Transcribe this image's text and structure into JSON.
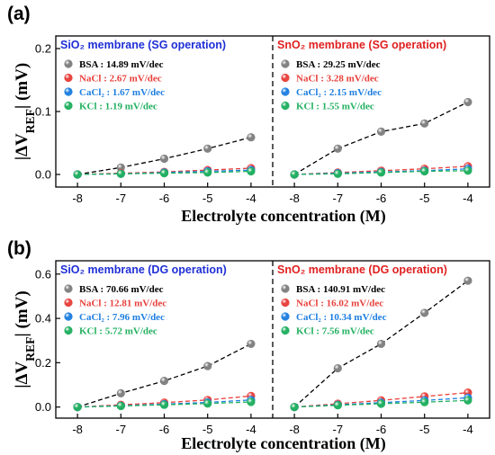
{
  "colors": {
    "BSA": "#808080",
    "NaCl": "#e8413c",
    "CaCl2": "#1e7fe0",
    "KCl": "#22b060",
    "sio2_title": "#1f2fd6",
    "sno2_title": "#e02020"
  },
  "chart_data": [
    {
      "panel_label": "(a)",
      "type": "scatter",
      "xlabel": "Electrolyte concentration (M)",
      "ylabel": "|ΔV_REF| (mV)",
      "ylim": [
        -0.02,
        0.22
      ],
      "yticks": [
        0.0,
        0.1,
        0.2
      ],
      "ytick_labels": [
        "0.0",
        "0.1",
        "0.2"
      ],
      "subplots": [
        {
          "title": "SiO₂ membrane (SG operation)",
          "title_color_key": "sio2_title",
          "xlim": [
            -8.5,
            -3.5
          ],
          "xticks": [
            -8,
            -7,
            -6,
            -5,
            -4
          ],
          "xtick_labels": [
            "-8",
            "-7",
            "-6",
            "-5",
            "-4"
          ],
          "series": [
            {
              "key": "BSA",
              "legend": "BSA : 14.89 mV/dec",
              "x": [
                -8,
                -7,
                -6,
                -5,
                -4
              ],
              "y": [
                0.0,
                0.011,
                0.025,
                0.041,
                0.059
              ]
            },
            {
              "key": "NaCl",
              "legend": "NaCl : 2.67 mV/dec",
              "x": [
                -8,
                -7,
                -6,
                -5,
                -4
              ],
              "y": [
                0.0,
                0.002,
                0.004,
                0.007,
                0.01
              ]
            },
            {
              "key": "CaCl2",
              "legend": "CaCl₂ : 1.67 mV/dec",
              "x": [
                -8,
                -7,
                -6,
                -5,
                -4
              ],
              "y": [
                0.0,
                0.001,
                0.003,
                0.005,
                0.007
              ]
            },
            {
              "key": "KCl",
              "legend": "KCl : 1.19 mV/dec",
              "x": [
                -8,
                -7,
                -6,
                -5,
                -4
              ],
              "y": [
                0.0,
                0.001,
                0.002,
                0.003,
                0.005
              ]
            }
          ]
        },
        {
          "title": "SnO₂ membrane (SG operation)",
          "title_color_key": "sno2_title",
          "xlim": [
            -8.5,
            -3.5
          ],
          "xticks": [
            -8,
            -7,
            -6,
            -5,
            -4
          ],
          "xtick_labels": [
            "-8",
            "-7",
            "-6",
            "-5",
            "-4"
          ],
          "series": [
            {
              "key": "BSA",
              "legend": "BSA : 29.25 mV/dec",
              "x": [
                -8,
                -7,
                -6,
                -5,
                -4
              ],
              "y": [
                0.0,
                0.041,
                0.068,
                0.081,
                0.115
              ]
            },
            {
              "key": "NaCl",
              "legend": "NaCl : 3.28 mV/dec",
              "x": [
                -8,
                -7,
                -6,
                -5,
                -4
              ],
              "y": [
                0.0,
                0.003,
                0.006,
                0.009,
                0.013
              ]
            },
            {
              "key": "CaCl2",
              "legend": "CaCl₂ : 2.15 mV/dec",
              "x": [
                -8,
                -7,
                -6,
                -5,
                -4
              ],
              "y": [
                0.0,
                0.002,
                0.004,
                0.006,
                0.009
              ]
            },
            {
              "key": "KCl",
              "legend": "KCl : 1.55 mV/dec",
              "x": [
                -8,
                -7,
                -6,
                -5,
                -4
              ],
              "y": [
                0.0,
                0.001,
                0.003,
                0.005,
                0.006
              ]
            }
          ]
        }
      ]
    },
    {
      "panel_label": "(b)",
      "type": "scatter",
      "xlabel": "Electrolyte concentration (M)",
      "ylabel": "|ΔV_REF| (mV)",
      "ylim": [
        -0.05,
        0.66
      ],
      "yticks": [
        0.0,
        0.2,
        0.4,
        0.6
      ],
      "ytick_labels": [
        "0.0",
        "0.2",
        "0.4",
        "0.6"
      ],
      "subplots": [
        {
          "title": "SiO₂ membrane (DG operation)",
          "title_color_key": "sio2_title",
          "xlim": [
            -8.5,
            -3.5
          ],
          "xticks": [
            -8,
            -7,
            -6,
            -5,
            -4
          ],
          "xtick_labels": [
            "-8",
            "-7",
            "-6",
            "-5",
            "-4"
          ],
          "series": [
            {
              "key": "BSA",
              "legend": "BSA : 70.66 mV/dec",
              "x": [
                -8,
                -7,
                -6,
                -5,
                -4
              ],
              "y": [
                0.0,
                0.062,
                0.118,
                0.185,
                0.285
              ]
            },
            {
              "key": "NaCl",
              "legend": "NaCl : 12.81 mV/dec",
              "x": [
                -8,
                -7,
                -6,
                -5,
                -4
              ],
              "y": [
                0.0,
                0.01,
                0.02,
                0.032,
                0.05
              ]
            },
            {
              "key": "CaCl2",
              "legend": "CaCl₂ : 7.96 mV/dec",
              "x": [
                -8,
                -7,
                -6,
                -5,
                -4
              ],
              "y": [
                0.0,
                0.006,
                0.013,
                0.021,
                0.032
              ]
            },
            {
              "key": "KCl",
              "legend": "KCl : 5.72 mV/dec",
              "x": [
                -8,
                -7,
                -6,
                -5,
                -4
              ],
              "y": [
                0.0,
                0.005,
                0.01,
                0.016,
                0.023
              ]
            }
          ]
        },
        {
          "title": "SnO₂ membrane (DG operation)",
          "title_color_key": "sno2_title",
          "xlim": [
            -8.5,
            -3.5
          ],
          "xticks": [
            -8,
            -7,
            -6,
            -5,
            -4
          ],
          "xtick_labels": [
            "-8",
            "-7",
            "-6",
            "-5",
            "-4"
          ],
          "series": [
            {
              "key": "BSA",
              "legend": "BSA : 140.91 mV/dec",
              "x": [
                -8,
                -7,
                -6,
                -5,
                -4
              ],
              "y": [
                0.0,
                0.175,
                0.285,
                0.425,
                0.57
              ]
            },
            {
              "key": "NaCl",
              "legend": "NaCl : 16.02 mV/dec",
              "x": [
                -8,
                -7,
                -6,
                -5,
                -4
              ],
              "y": [
                0.0,
                0.015,
                0.03,
                0.048,
                0.065
              ]
            },
            {
              "key": "CaCl2",
              "legend": "CaCl₂ : 10.34 mV/dec",
              "x": [
                -8,
                -7,
                -6,
                -5,
                -4
              ],
              "y": [
                0.0,
                0.01,
                0.02,
                0.03,
                0.042
              ]
            },
            {
              "key": "KCl",
              "legend": "KCl : 7.56 mV/dec",
              "x": [
                -8,
                -7,
                -6,
                -5,
                -4
              ],
              "y": [
                0.0,
                0.008,
                0.015,
                0.022,
                0.03
              ]
            }
          ]
        }
      ]
    }
  ]
}
